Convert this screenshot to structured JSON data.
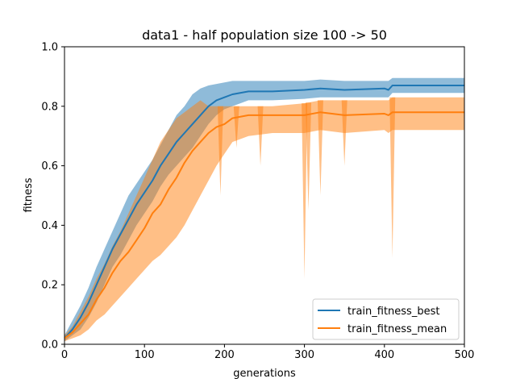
{
  "chart_data": {
    "type": "line",
    "title": "data1 - half population size 100 -> 50",
    "xlabel": "generations",
    "ylabel": "fitness",
    "xlim": [
      0,
      500
    ],
    "ylim": [
      0.0,
      1.0
    ],
    "xticks": [
      "0",
      "100",
      "200",
      "300",
      "400",
      "500"
    ],
    "yticks": [
      "0.0",
      "0.2",
      "0.4",
      "0.6",
      "0.8",
      "1.0"
    ],
    "grid": false,
    "legend_position": "lower-right",
    "series": [
      {
        "name": "train_fitness_best",
        "color": "#1f77b4",
        "x": [
          0,
          10,
          20,
          30,
          40,
          50,
          60,
          70,
          80,
          90,
          100,
          110,
          120,
          130,
          140,
          150,
          160,
          170,
          180,
          190,
          200,
          210,
          230,
          260,
          300,
          320,
          350,
          400,
          405,
          410,
          450,
          500
        ],
        "values": [
          0.02,
          0.05,
          0.09,
          0.14,
          0.2,
          0.26,
          0.32,
          0.37,
          0.42,
          0.47,
          0.51,
          0.55,
          0.6,
          0.64,
          0.68,
          0.71,
          0.74,
          0.77,
          0.8,
          0.82,
          0.83,
          0.84,
          0.85,
          0.85,
          0.855,
          0.86,
          0.855,
          0.86,
          0.855,
          0.87,
          0.87,
          0.87
        ],
        "upper": [
          0.03,
          0.08,
          0.13,
          0.19,
          0.26,
          0.32,
          0.38,
          0.44,
          0.5,
          0.54,
          0.58,
          0.62,
          0.67,
          0.72,
          0.77,
          0.8,
          0.84,
          0.86,
          0.87,
          0.875,
          0.88,
          0.885,
          0.885,
          0.885,
          0.885,
          0.89,
          0.885,
          0.885,
          0.885,
          0.895,
          0.895,
          0.895
        ],
        "lower": [
          0.01,
          0.03,
          0.05,
          0.09,
          0.14,
          0.2,
          0.26,
          0.3,
          0.35,
          0.4,
          0.44,
          0.48,
          0.53,
          0.57,
          0.6,
          0.63,
          0.66,
          0.7,
          0.74,
          0.77,
          0.79,
          0.8,
          0.82,
          0.82,
          0.825,
          0.83,
          0.83,
          0.83,
          0.83,
          0.845,
          0.845,
          0.845
        ]
      },
      {
        "name": "train_fitness_mean",
        "color": "#ff7f0e",
        "x": [
          0,
          10,
          20,
          30,
          40,
          50,
          60,
          70,
          80,
          90,
          100,
          110,
          120,
          130,
          140,
          150,
          160,
          170,
          180,
          190,
          200,
          210,
          230,
          260,
          300,
          320,
          350,
          400,
          405,
          410,
          450,
          500
        ],
        "values": [
          0.02,
          0.04,
          0.07,
          0.1,
          0.15,
          0.19,
          0.24,
          0.28,
          0.31,
          0.35,
          0.39,
          0.44,
          0.47,
          0.52,
          0.56,
          0.61,
          0.65,
          0.68,
          0.71,
          0.73,
          0.74,
          0.76,
          0.77,
          0.77,
          0.77,
          0.78,
          0.77,
          0.775,
          0.77,
          0.78,
          0.78,
          0.78
        ],
        "upper": [
          0.03,
          0.06,
          0.11,
          0.16,
          0.22,
          0.27,
          0.33,
          0.38,
          0.44,
          0.5,
          0.56,
          0.62,
          0.68,
          0.72,
          0.76,
          0.78,
          0.8,
          0.82,
          0.8,
          0.8,
          0.8,
          0.8,
          0.8,
          0.8,
          0.81,
          0.82,
          0.82,
          0.82,
          0.82,
          0.83,
          0.83,
          0.83
        ],
        "lower": [
          0.01,
          0.02,
          0.03,
          0.05,
          0.08,
          0.1,
          0.13,
          0.16,
          0.19,
          0.22,
          0.25,
          0.28,
          0.3,
          0.33,
          0.36,
          0.4,
          0.45,
          0.5,
          0.55,
          0.6,
          0.64,
          0.68,
          0.7,
          0.71,
          0.71,
          0.72,
          0.71,
          0.72,
          0.71,
          0.72,
          0.72,
          0.72
        ]
      }
    ],
    "dips": [
      {
        "series": 1,
        "x": 300,
        "lower": 0.22
      },
      {
        "series": 1,
        "x": 305,
        "lower": 0.45
      },
      {
        "series": 1,
        "x": 320,
        "lower": 0.5
      },
      {
        "series": 1,
        "x": 350,
        "lower": 0.6
      },
      {
        "series": 1,
        "x": 410,
        "lower": 0.29
      },
      {
        "series": 1,
        "x": 245,
        "lower": 0.6
      },
      {
        "series": 1,
        "x": 215,
        "lower": 0.66
      },
      {
        "series": 1,
        "x": 195,
        "lower": 0.5
      }
    ]
  }
}
